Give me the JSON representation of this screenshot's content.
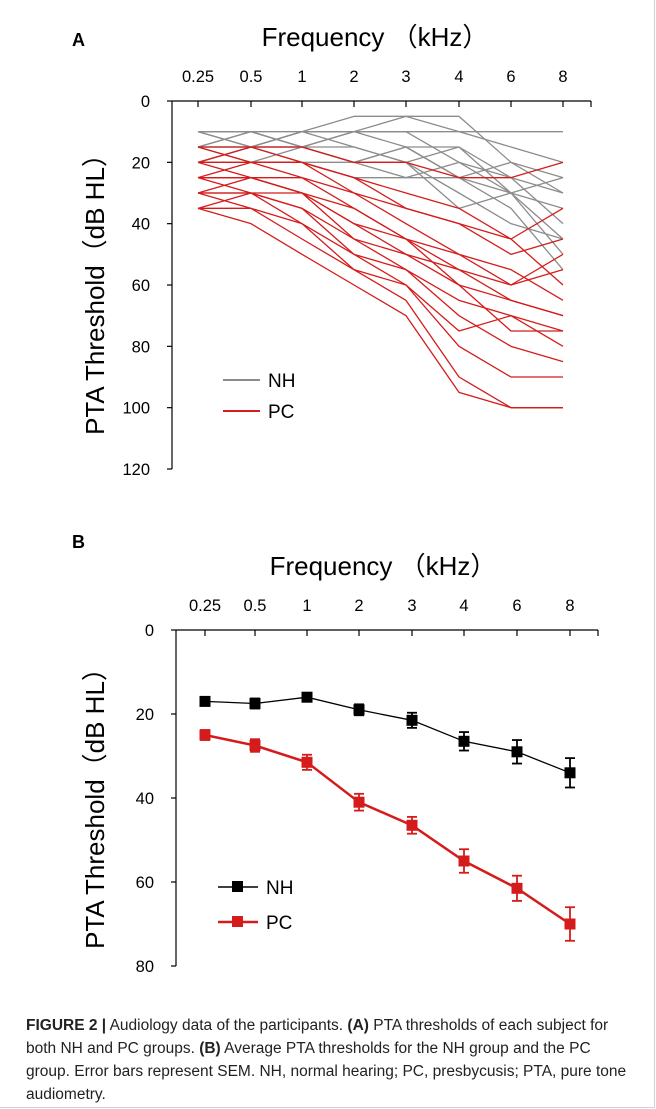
{
  "chart_data": [
    {
      "panel": "A",
      "type": "line",
      "x_label": "Frequency （kHz）",
      "y_label": "PTA Threshold（dB HL）",
      "categories": [
        "0.25",
        "0.5",
        "1",
        "2",
        "3",
        "4",
        "6",
        "8"
      ],
      "ylim": [
        0,
        120
      ],
      "y_ticks": [
        0,
        20,
        40,
        60,
        80,
        100,
        120
      ],
      "y_inverted": true,
      "legend": [
        {
          "name": "NH",
          "color": "#8c8c8c"
        },
        {
          "name": "PC",
          "color": "#d41c1c"
        }
      ],
      "series": [
        {
          "group": "NH",
          "values": [
            10,
            10,
            10,
            10,
            10,
            10,
            10,
            10
          ]
        },
        {
          "group": "NH",
          "values": [
            10,
            15,
            10,
            5,
            5,
            5,
            20,
            25
          ]
        },
        {
          "group": "NH",
          "values": [
            15,
            10,
            15,
            10,
            15,
            15,
            25,
            40
          ]
        },
        {
          "group": "NH",
          "values": [
            15,
            15,
            10,
            10,
            5,
            10,
            15,
            20
          ]
        },
        {
          "group": "NH",
          "values": [
            20,
            15,
            15,
            15,
            20,
            15,
            30,
            35
          ]
        },
        {
          "group": "NH",
          "values": [
            10,
            15,
            20,
            20,
            15,
            25,
            20,
            30
          ]
        },
        {
          "group": "NH",
          "values": [
            15,
            20,
            15,
            10,
            10,
            20,
            30,
            45
          ]
        },
        {
          "group": "NH",
          "values": [
            20,
            20,
            20,
            25,
            25,
            25,
            30,
            50
          ]
        },
        {
          "group": "NH",
          "values": [
            15,
            15,
            10,
            15,
            20,
            35,
            30,
            25
          ]
        },
        {
          "group": "NH",
          "values": [
            10,
            10,
            15,
            20,
            20,
            30,
            40,
            45
          ]
        },
        {
          "group": "NH",
          "values": [
            20,
            15,
            15,
            20,
            15,
            25,
            35,
            55
          ]
        },
        {
          "group": "NH",
          "values": [
            15,
            10,
            15,
            20,
            25,
            20,
            25,
            30
          ]
        },
        {
          "group": "PC",
          "values": [
            15,
            15,
            15,
            20,
            20,
            25,
            25,
            20
          ]
        },
        {
          "group": "PC",
          "values": [
            15,
            20,
            20,
            25,
            35,
            40,
            45,
            35
          ]
        },
        {
          "group": "PC",
          "values": [
            20,
            15,
            20,
            30,
            40,
            50,
            60,
            55
          ]
        },
        {
          "group": "PC",
          "values": [
            20,
            20,
            25,
            30,
            35,
            40,
            50,
            45
          ]
        },
        {
          "group": "PC",
          "values": [
            25,
            20,
            20,
            25,
            30,
            35,
            45,
            60
          ]
        },
        {
          "group": "PC",
          "values": [
            25,
            25,
            30,
            35,
            45,
            55,
            65,
            70
          ]
        },
        {
          "group": "PC",
          "values": [
            30,
            25,
            25,
            35,
            45,
            60,
            75,
            75
          ]
        },
        {
          "group": "PC",
          "values": [
            30,
            30,
            30,
            40,
            45,
            50,
            55,
            65
          ]
        },
        {
          "group": "PC",
          "values": [
            25,
            30,
            35,
            45,
            55,
            65,
            70,
            75
          ]
        },
        {
          "group": "PC",
          "values": [
            30,
            30,
            35,
            50,
            55,
            70,
            80,
            85
          ]
        },
        {
          "group": "PC",
          "values": [
            35,
            30,
            40,
            50,
            60,
            75,
            70,
            80
          ]
        },
        {
          "group": "PC",
          "values": [
            35,
            35,
            40,
            55,
            60,
            80,
            90,
            90
          ]
        },
        {
          "group": "PC",
          "values": [
            30,
            35,
            45,
            55,
            65,
            90,
            100,
            100
          ]
        },
        {
          "group": "PC",
          "values": [
            35,
            40,
            50,
            60,
            70,
            95,
            100,
            100
          ]
        },
        {
          "group": "PC",
          "values": [
            20,
            25,
            30,
            40,
            50,
            55,
            60,
            50
          ]
        },
        {
          "group": "PC",
          "values": [
            25,
            25,
            30,
            45,
            50,
            60,
            65,
            70
          ]
        }
      ]
    },
    {
      "panel": "B",
      "type": "line",
      "x_label": "Frequency （kHz）",
      "y_label": "PTA Threshold（dB HL）",
      "categories": [
        "0.25",
        "0.5",
        "1",
        "2",
        "3",
        "4",
        "6",
        "8"
      ],
      "ylim": [
        0,
        80
      ],
      "y_ticks": [
        0,
        20,
        40,
        60,
        80
      ],
      "y_inverted": true,
      "series": [
        {
          "name": "NH",
          "color": "#000000",
          "values": [
            17,
            17.5,
            16,
            19,
            21.5,
            26.5,
            29,
            34
          ],
          "sem": [
            1,
            1.2,
            1,
            1.3,
            1.8,
            2.2,
            2.8,
            3.5
          ]
        },
        {
          "name": "PC",
          "color": "#d41c1c",
          "values": [
            25,
            27.5,
            31.5,
            41,
            46.5,
            55,
            61.5,
            70
          ],
          "sem": [
            1.2,
            1.5,
            1.8,
            2,
            2,
            2.8,
            3,
            4
          ]
        }
      ]
    }
  ],
  "caption": {
    "figure_label": "FIGURE 2 |",
    "title": " Audiology data of the participants. ",
    "a_label": "(A)",
    "a_text": " PTA thresholds of each subject for both NH and PC groups. ",
    "b_label": "(B)",
    "b_text": " Average PTA thresholds for the NH group and the PC group. Error bars represent SEM. NH, normal hearing; PC, presbycusis; PTA, pure tone audiometry."
  }
}
